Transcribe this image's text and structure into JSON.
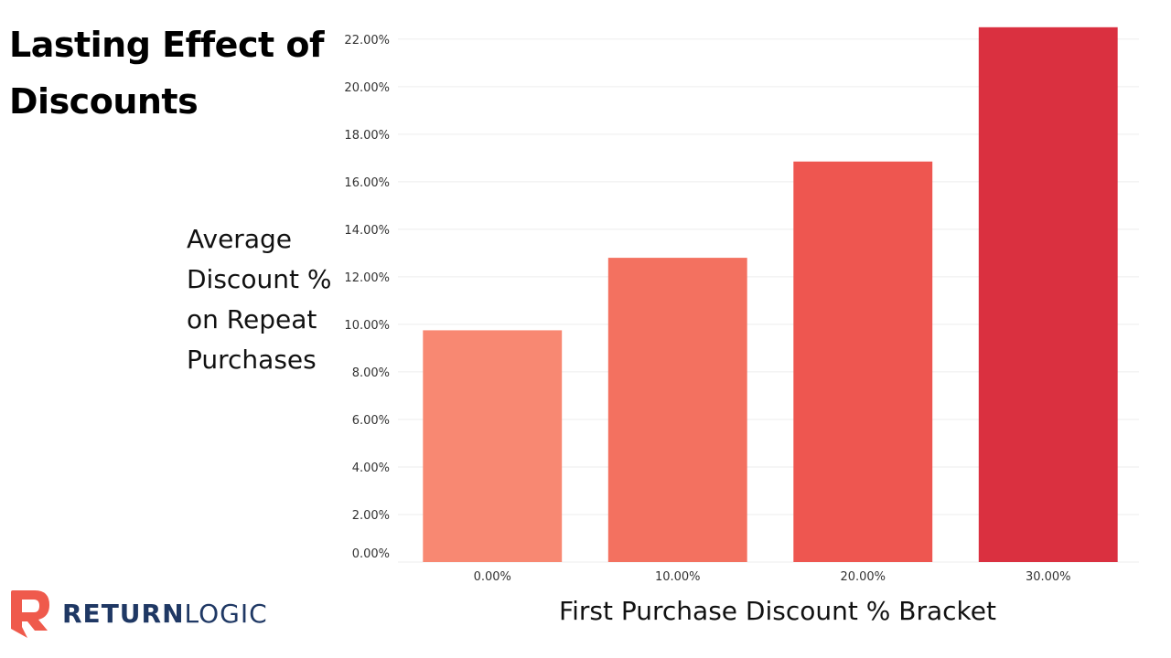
{
  "colors": {
    "bars": [
      "#f88872",
      "#f37160",
      "#ee5650",
      "#da3040"
    ],
    "grid": "#eeeeee",
    "logo_red": "#ef5a4c",
    "logo_navy": "#1f3864"
  },
  "logo": {
    "icon": "returnlogic-r-logo-icon",
    "bold": "RETURN",
    "light": "LOGIC"
  },
  "chart_data": {
    "type": "bar",
    "title": "Lasting Effect of Discounts",
    "ylabel_lines": [
      "Average",
      "Discount %",
      "on Repeat",
      "Purchases"
    ],
    "xlabel": "First Purchase Discount % Bracket",
    "categories": [
      "0.00%",
      "10.00%",
      "20.00%",
      "30.00%"
    ],
    "values": [
      9.75,
      12.8,
      16.85,
      22.5
    ],
    "ylim": [
      0,
      22.8
    ],
    "yticks": [
      "0.00%",
      "2.00%",
      "4.00%",
      "6.00%",
      "8.00%",
      "10.00%",
      "12.00%",
      "14.00%",
      "16.00%",
      "18.00%",
      "20.00%",
      "22.00%"
    ],
    "grid": true
  }
}
